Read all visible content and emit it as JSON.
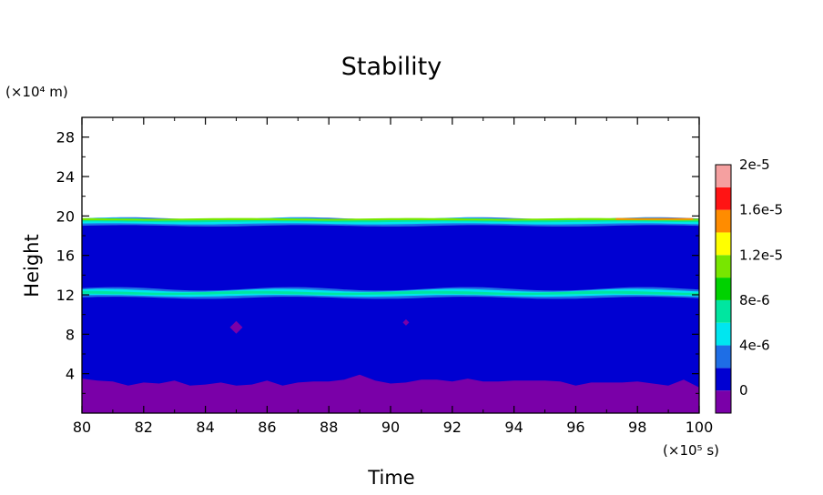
{
  "chart_data": {
    "type": "heatmap",
    "subtype": "filled-contour",
    "title": "Stability",
    "xlabel": "Time",
    "ylabel": "Height",
    "x_unit": "(×10⁵ s)",
    "y_unit": "(×10⁴ m)",
    "xlim": [
      80,
      100
    ],
    "ylim": [
      0,
      30
    ],
    "x_ticks": [
      "80",
      "82",
      "84",
      "86",
      "88",
      "90",
      "92",
      "94",
      "96",
      "98",
      "100"
    ],
    "y_ticks": [
      "4",
      "8",
      "12",
      "16",
      "20",
      "24",
      "28"
    ],
    "x_tick_values": [
      80,
      82,
      84,
      86,
      88,
      90,
      92,
      94,
      96,
      98,
      100
    ],
    "y_tick_values": [
      4,
      8,
      12,
      16,
      20,
      24,
      28
    ],
    "colorbar": {
      "levels": [
        {
          "color": "#7a00a8"
        },
        {
          "color": "#0000d2"
        },
        {
          "color": "#1e6ee6"
        },
        {
          "color": "#00e6f0"
        },
        {
          "color": "#00e6a0"
        },
        {
          "color": "#00d200"
        },
        {
          "color": "#78e600"
        },
        {
          "color": "#ffff00"
        },
        {
          "color": "#ff8c00"
        },
        {
          "color": "#ff1414"
        },
        {
          "color": "#f5a0a0"
        }
      ],
      "labels": [
        "0",
        "4e-6",
        "8e-6",
        "1.2e-5",
        "1.6e-5",
        "2e-5"
      ]
    },
    "regions": [
      {
        "name": "tropopause-band",
        "approx_height": [
          19.2,
          19.7
        ],
        "value_range": "4e-6 to 2e-5"
      },
      {
        "name": "mid-level-band",
        "approx_height": [
          11.8,
          12.6
        ],
        "value_range": "4e-6 to 8e-6"
      },
      {
        "name": "boundary-layer",
        "approx_height": [
          0,
          3.5
        ],
        "value_range": "< 0"
      },
      {
        "name": "negative-patch",
        "x": 85,
        "y": 8.7
      },
      {
        "name": "negative-patch",
        "x": 90.5,
        "y": 9.2
      }
    ],
    "surface_boundary": {
      "x": [
        80,
        80.5,
        81,
        81.5,
        82,
        82.5,
        83,
        83.5,
        84,
        84.5,
        85,
        85.5,
        86,
        86.5,
        87,
        87.5,
        88,
        88.5,
        89,
        89.5,
        90,
        90.5,
        91,
        91.5,
        92,
        92.5,
        93,
        93.5,
        94,
        94.5,
        95,
        95.5,
        96,
        96.5,
        97,
        97.5,
        98,
        98.5,
        99,
        99.5,
        100
      ],
      "y": [
        3.5,
        3.3,
        3.2,
        2.8,
        3.1,
        3.0,
        3.3,
        2.8,
        2.9,
        3.1,
        2.8,
        2.9,
        3.3,
        2.8,
        3.1,
        3.2,
        3.2,
        3.4,
        3.9,
        3.3,
        3.0,
        3.1,
        3.4,
        3.4,
        3.2,
        3.5,
        3.2,
        3.2,
        3.3,
        3.3,
        3.3,
        3.2,
        2.8,
        3.1,
        3.1,
        3.1,
        3.2,
        3.0,
        2.8,
        3.4,
        2.6
      ]
    }
  }
}
